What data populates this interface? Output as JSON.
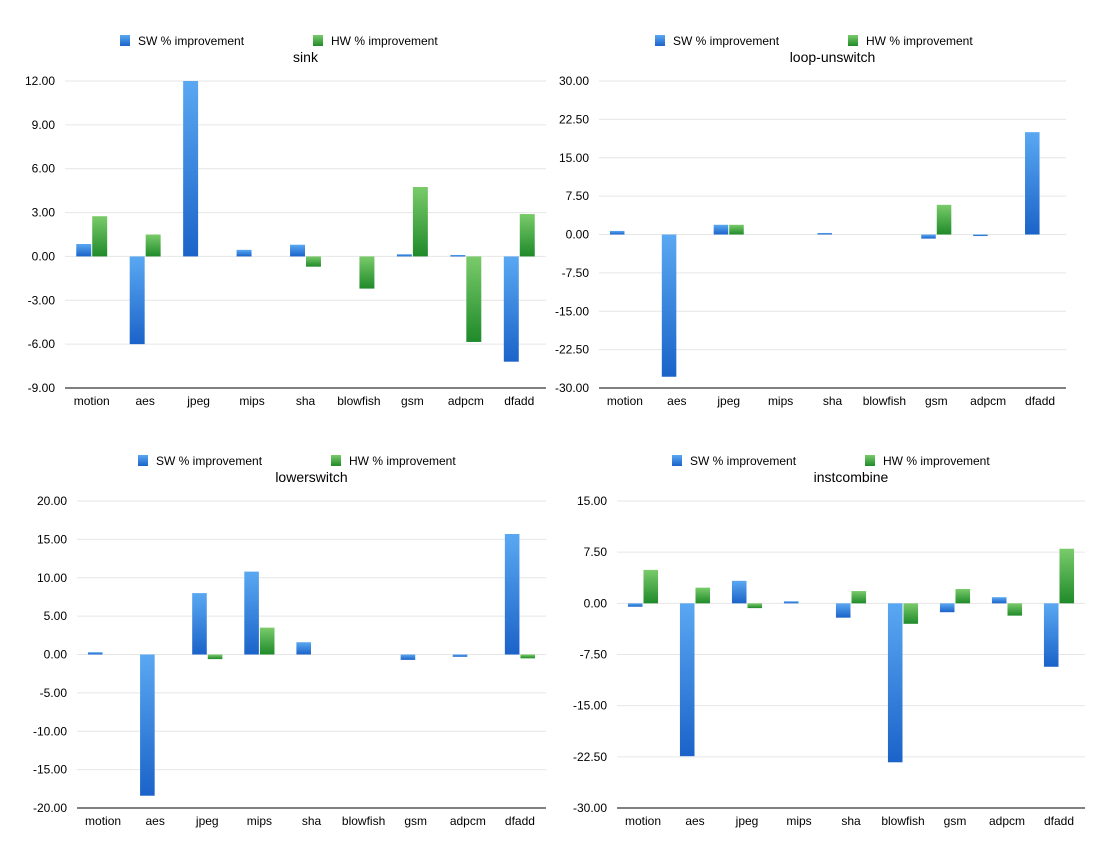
{
  "legend": {
    "sw_label": "SW % improvement",
    "hw_label": "HW % improvement"
  },
  "colors": {
    "sw": "#2b7fe0",
    "hw": "#3aa83a",
    "grid": "#e6e6e6",
    "axis": "#000000"
  },
  "chart_data": [
    {
      "type": "bar",
      "title": "sink",
      "categories": [
        "motion",
        "aes",
        "jpeg",
        "mips",
        "sha",
        "blowfish",
        "gsm",
        "adpcm",
        "dfadd"
      ],
      "ylim": [
        -9,
        12
      ],
      "ticks": [
        "12.00",
        "9.00",
        "6.00",
        "3.00",
        "0.00",
        "-3.00",
        "-6.00",
        "-9.00"
      ],
      "tick_values": [
        12,
        9,
        6,
        3,
        0,
        -3,
        -6,
        -9
      ],
      "series": [
        {
          "name": "SW % improvement",
          "values": [
            0.85,
            -6.0,
            12.0,
            0.45,
            0.8,
            0,
            0.15,
            0.1,
            -7.2
          ]
        },
        {
          "name": "HW % improvement",
          "values": [
            2.75,
            1.5,
            0,
            0,
            -0.7,
            -2.2,
            4.75,
            -5.85,
            2.9
          ]
        }
      ],
      "legend": "top-center",
      "grid": true
    },
    {
      "type": "bar",
      "title": "loop-unswitch",
      "categories": [
        "motion",
        "aes",
        "jpeg",
        "mips",
        "sha",
        "blowfish",
        "gsm",
        "adpcm",
        "dfadd"
      ],
      "ylim": [
        -30,
        30
      ],
      "ticks": [
        "30.00",
        "22.50",
        "15.00",
        "7.50",
        "0.00",
        "-7.50",
        "-15.00",
        "-22.50",
        "-30.00"
      ],
      "tick_values": [
        30,
        22.5,
        15,
        7.5,
        0,
        -7.5,
        -15,
        -22.5,
        -30
      ],
      "series": [
        {
          "name": "SW % improvement",
          "values": [
            0.7,
            -27.8,
            1.9,
            0,
            0.3,
            0,
            -0.8,
            -0.3,
            20.0
          ]
        },
        {
          "name": "HW % improvement",
          "values": [
            0,
            0,
            1.9,
            0,
            0,
            0,
            5.8,
            0,
            0
          ]
        }
      ],
      "legend": "top-center",
      "grid": true
    },
    {
      "type": "bar",
      "title": "lowerswitch",
      "categories": [
        "motion",
        "aes",
        "jpeg",
        "mips",
        "sha",
        "blowfish",
        "gsm",
        "adpcm",
        "dfadd"
      ],
      "ylim": [
        -20,
        20
      ],
      "ticks": [
        "20.00",
        "15.00",
        "10.00",
        "5.00",
        "0.00",
        "-5.00",
        "-10.00",
        "-15.00",
        "-20.00"
      ],
      "tick_values": [
        20,
        15,
        10,
        5,
        0,
        -5,
        -10,
        -15,
        -20
      ],
      "series": [
        {
          "name": "SW % improvement",
          "values": [
            0.3,
            -18.4,
            8.0,
            10.8,
            1.6,
            0,
            -0.7,
            -0.3,
            15.7
          ]
        },
        {
          "name": "HW % improvement",
          "values": [
            0,
            0,
            -0.6,
            3.5,
            0,
            0,
            0,
            0,
            -0.5
          ]
        }
      ],
      "legend": "top-center",
      "grid": true
    },
    {
      "type": "bar",
      "title": "instcombine",
      "categories": [
        "motion",
        "aes",
        "jpeg",
        "mips",
        "sha",
        "blowfish",
        "gsm",
        "adpcm",
        "dfadd"
      ],
      "ylim": [
        -30,
        15
      ],
      "ticks": [
        "15.00",
        "7.50",
        "0.00",
        "-7.50",
        "-15.00",
        "-22.50",
        "-30.00"
      ],
      "tick_values": [
        15,
        7.5,
        0,
        -7.5,
        -15,
        -22.5,
        -30
      ],
      "series": [
        {
          "name": "SW % improvement",
          "values": [
            -0.5,
            -22.4,
            3.3,
            0.3,
            -2.1,
            -23.3,
            -1.3,
            0.9,
            -9.3
          ]
        },
        {
          "name": "HW % improvement",
          "values": [
            4.9,
            2.3,
            -0.7,
            0,
            1.8,
            -3.0,
            2.1,
            -1.8,
            8.0
          ]
        }
      ],
      "legend": "top-center",
      "grid": true
    }
  ]
}
